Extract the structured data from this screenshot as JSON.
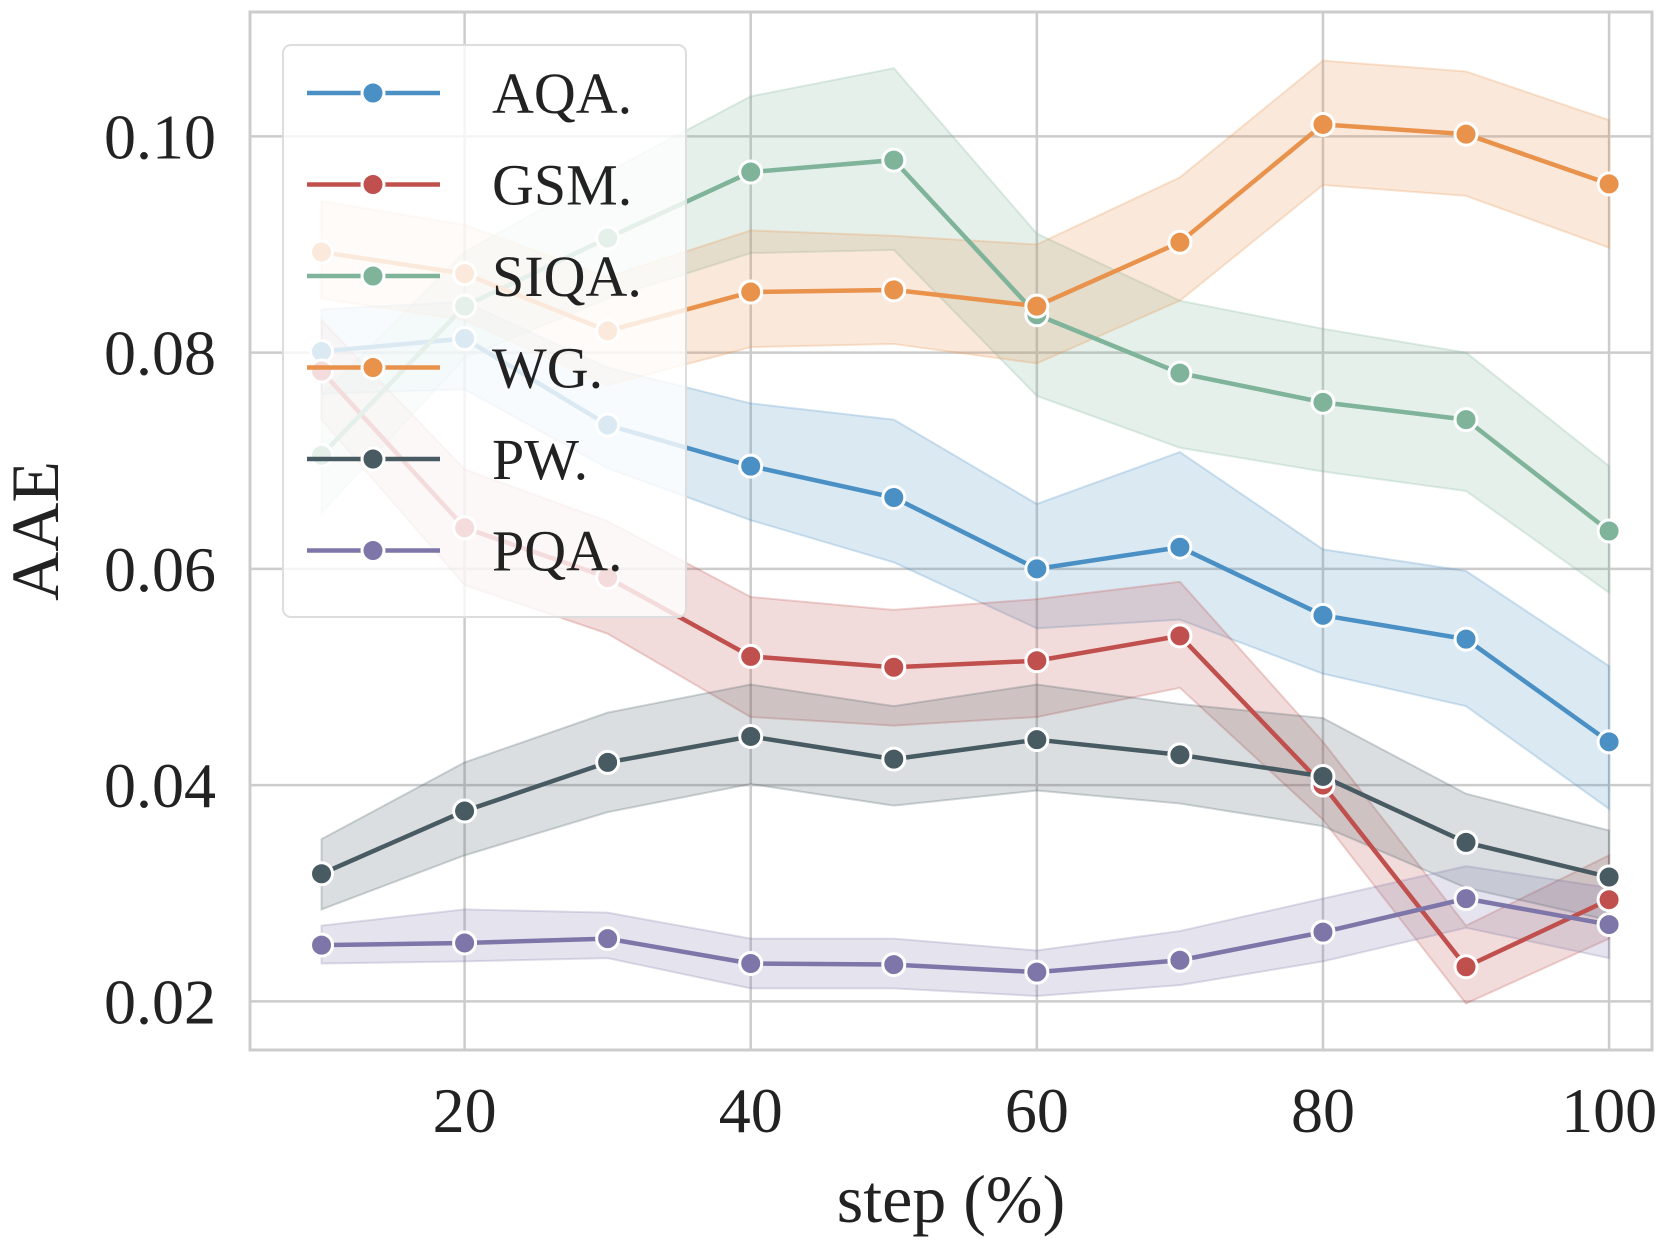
{
  "chart_data": {
    "type": "line",
    "xlabel": "step (%)",
    "ylabel": "AAE",
    "xlim": [
      5,
      103
    ],
    "ylim": [
      0.0155,
      0.1115
    ],
    "xticks": [
      20,
      40,
      60,
      80,
      100
    ],
    "xtick_labels": [
      "20",
      "40",
      "60",
      "80",
      "100"
    ],
    "yticks": [
      0.02,
      0.04,
      0.06,
      0.08,
      0.1
    ],
    "ytick_labels": [
      "0.02",
      "0.04",
      "0.06",
      "0.08",
      "0.10"
    ],
    "grid": true,
    "legend_position": "top-left",
    "x": [
      10,
      20,
      30,
      40,
      50,
      60,
      70,
      80,
      90,
      100
    ],
    "series": [
      {
        "name": "AQA.",
        "color": "#4A90C4",
        "values": [
          0.0801,
          0.0813,
          0.0733,
          0.0695,
          0.0666,
          0.06,
          0.062,
          0.0557,
          0.0535,
          0.044
        ],
        "lower": [
          0.0762,
          0.0766,
          0.0693,
          0.0645,
          0.0606,
          0.0545,
          0.0553,
          0.0503,
          0.0473,
          0.0378
        ],
        "upper": [
          0.084,
          0.0847,
          0.0786,
          0.0753,
          0.0738,
          0.066,
          0.0708,
          0.0618,
          0.0598,
          0.051
        ]
      },
      {
        "name": "GSM.",
        "color": "#C0504D",
        "values": [
          0.0783,
          0.0638,
          0.0592,
          0.0519,
          0.0509,
          0.0515,
          0.0538,
          0.04,
          0.0232,
          0.0294
        ],
        "lower": [
          0.0738,
          0.0585,
          0.054,
          0.0463,
          0.0455,
          0.0463,
          0.049,
          0.0368,
          0.0198,
          0.0258
        ],
        "upper": [
          0.083,
          0.0692,
          0.0644,
          0.0574,
          0.0562,
          0.0572,
          0.0588,
          0.044,
          0.027,
          0.0335
        ]
      },
      {
        "name": "SIQA.",
        "color": "#7FB39A",
        "values": [
          0.0705,
          0.0843,
          0.0906,
          0.0967,
          0.0978,
          0.0835,
          0.0781,
          0.0754,
          0.0738,
          0.0635
        ],
        "lower": [
          0.0652,
          0.0795,
          0.085,
          0.0892,
          0.0895,
          0.076,
          0.0712,
          0.069,
          0.0672,
          0.0578
        ],
        "upper": [
          0.076,
          0.0893,
          0.0967,
          0.1037,
          0.1063,
          0.091,
          0.0848,
          0.0822,
          0.08,
          0.0695
        ]
      },
      {
        "name": "WG.",
        "color": "#E8924C",
        "values": [
          0.0893,
          0.0873,
          0.082,
          0.0856,
          0.0858,
          0.0843,
          0.0902,
          0.1011,
          0.1002,
          0.0956
        ],
        "lower": [
          0.085,
          0.083,
          0.077,
          0.0805,
          0.0808,
          0.079,
          0.0848,
          0.0955,
          0.0945,
          0.0897
        ],
        "upper": [
          0.094,
          0.0918,
          0.087,
          0.0913,
          0.0908,
          0.09,
          0.0962,
          0.107,
          0.106,
          0.1015
        ]
      },
      {
        "name": "PW.",
        "color": "#485A62",
        "values": [
          0.0318,
          0.0376,
          0.0421,
          0.0445,
          0.0424,
          0.0442,
          0.0428,
          0.0408,
          0.0347,
          0.0315
        ],
        "lower": [
          0.0285,
          0.0335,
          0.0375,
          0.0401,
          0.0381,
          0.0395,
          0.0383,
          0.0362,
          0.0305,
          0.0275
        ],
        "upper": [
          0.035,
          0.0421,
          0.0467,
          0.0493,
          0.0473,
          0.0493,
          0.0475,
          0.0462,
          0.0392,
          0.0358
        ]
      },
      {
        "name": "PQA.",
        "color": "#7E76A8",
        "values": [
          0.0252,
          0.0254,
          0.0258,
          0.0235,
          0.0234,
          0.0227,
          0.0238,
          0.0264,
          0.0295,
          0.0271
        ],
        "lower": [
          0.0235,
          0.0237,
          0.024,
          0.0212,
          0.0212,
          0.0205,
          0.0215,
          0.0237,
          0.0268,
          0.024
        ],
        "upper": [
          0.027,
          0.0285,
          0.0282,
          0.0258,
          0.0258,
          0.0247,
          0.0265,
          0.0295,
          0.0325,
          0.0305
        ]
      }
    ]
  }
}
